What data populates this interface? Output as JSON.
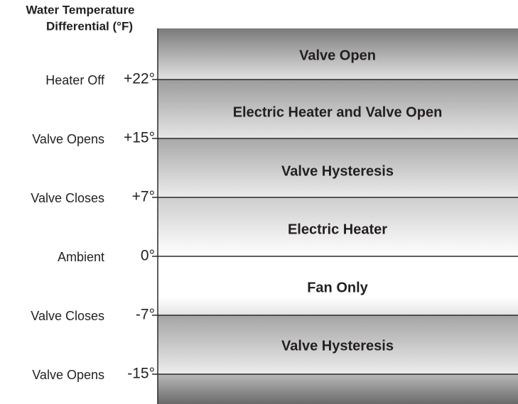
{
  "header": {
    "title": [
      "Water Temperature",
      "Differential (°F)"
    ]
  },
  "levels": [
    {
      "label": "Heater Off",
      "value": "+22°"
    },
    {
      "label": "Valve Opens",
      "value": "+15°"
    },
    {
      "label": "Valve Closes",
      "value": "+7°"
    },
    {
      "label": "Ambient",
      "value": "0°"
    },
    {
      "label": "Valve Closes",
      "value": "-7°"
    },
    {
      "label": "Valve Opens",
      "value": "-15°"
    }
  ],
  "bands": [
    "Valve Open",
    "Electric Heater and Valve Open",
    "Valve Hysteresis",
    "Electric Heater",
    "Fan Only",
    "Valve Hysteresis"
  ]
}
